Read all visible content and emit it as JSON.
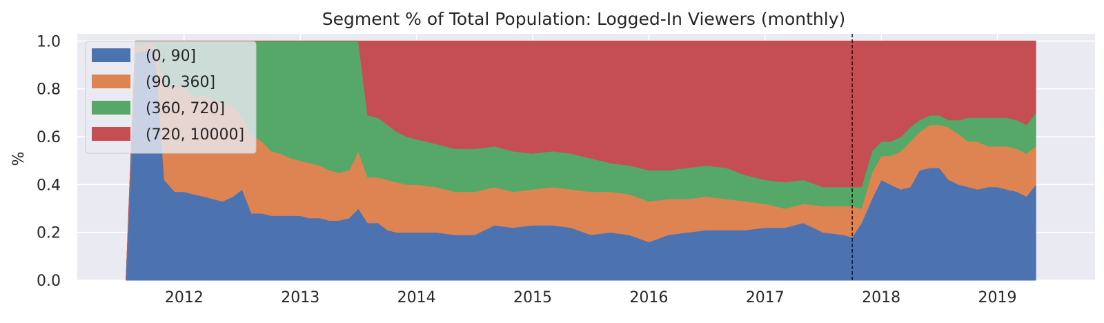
{
  "chart_data": {
    "type": "area",
    "stacked": true,
    "title": "Segment % of Total Population: Logged-In Viewers (monthly)",
    "xlabel": "",
    "ylabel": "%",
    "xlim": [
      2011.08,
      2019.84
    ],
    "ylim": [
      0.0,
      1.03
    ],
    "x_ticks": [
      2012,
      2013,
      2014,
      2015,
      2016,
      2017,
      2018,
      2019
    ],
    "y_ticks": [
      0.0,
      0.2,
      0.4,
      0.6,
      0.8,
      1.0
    ],
    "x_tick_labels": [
      "2012",
      "2013",
      "2014",
      "2015",
      "2016",
      "2017",
      "2018",
      "2019"
    ],
    "y_tick_labels": [
      "0.0",
      "0.2",
      "0.4",
      "0.6",
      "0.8",
      "1.0"
    ],
    "grid": true,
    "legend_position": "top-left",
    "vline": {
      "x": 2017.75,
      "style": "dashed",
      "color": "#000000"
    },
    "x": [
      2011.5,
      2011.58,
      2011.75,
      2011.83,
      2011.92,
      2012.0,
      2012.08,
      2012.17,
      2012.25,
      2012.33,
      2012.42,
      2012.5,
      2012.58,
      2012.67,
      2012.75,
      2012.83,
      2012.92,
      2013.0,
      2013.08,
      2013.17,
      2013.25,
      2013.33,
      2013.42,
      2013.5,
      2013.58,
      2013.67,
      2013.75,
      2013.83,
      2013.92,
      2014.0,
      2014.17,
      2014.33,
      2014.5,
      2014.67,
      2014.83,
      2015.0,
      2015.17,
      2015.33,
      2015.5,
      2015.67,
      2015.83,
      2016.0,
      2016.17,
      2016.33,
      2016.5,
      2016.67,
      2016.83,
      2017.0,
      2017.17,
      2017.33,
      2017.5,
      2017.67,
      2017.75,
      2017.83,
      2017.92,
      2018.0,
      2018.08,
      2018.17,
      2018.25,
      2018.33,
      2018.42,
      2018.5,
      2018.58,
      2018.67,
      2018.75,
      2018.83,
      2018.92,
      2019.0,
      2019.08,
      2019.17,
      2019.25,
      2019.33
    ],
    "series": [
      {
        "name": "(0, 90]",
        "color": "#4c72b0",
        "values": [
          0.0,
          0.95,
          0.97,
          0.42,
          0.37,
          0.37,
          0.36,
          0.35,
          0.34,
          0.33,
          0.35,
          0.38,
          0.28,
          0.28,
          0.27,
          0.27,
          0.27,
          0.27,
          0.26,
          0.26,
          0.25,
          0.25,
          0.26,
          0.3,
          0.24,
          0.24,
          0.21,
          0.2,
          0.2,
          0.2,
          0.2,
          0.19,
          0.19,
          0.23,
          0.22,
          0.23,
          0.23,
          0.22,
          0.19,
          0.2,
          0.19,
          0.16,
          0.19,
          0.2,
          0.21,
          0.21,
          0.21,
          0.22,
          0.22,
          0.24,
          0.2,
          0.19,
          0.18,
          0.24,
          0.34,
          0.42,
          0.4,
          0.38,
          0.39,
          0.46,
          0.47,
          0.47,
          0.42,
          0.4,
          0.39,
          0.38,
          0.39,
          0.39,
          0.38,
          0.37,
          0.35,
          0.4
        ]
      },
      {
        "name": "(90, 360]",
        "color": "#dd8452",
        "values": [
          0.0,
          0.03,
          0.02,
          0.39,
          0.44,
          0.44,
          0.41,
          0.42,
          0.42,
          0.41,
          0.38,
          0.3,
          0.33,
          0.3,
          0.27,
          0.26,
          0.24,
          0.23,
          0.23,
          0.22,
          0.21,
          0.2,
          0.2,
          0.24,
          0.19,
          0.19,
          0.21,
          0.21,
          0.2,
          0.2,
          0.19,
          0.18,
          0.18,
          0.16,
          0.15,
          0.15,
          0.16,
          0.16,
          0.18,
          0.17,
          0.17,
          0.17,
          0.15,
          0.14,
          0.14,
          0.13,
          0.12,
          0.1,
          0.08,
          0.08,
          0.11,
          0.12,
          0.13,
          0.06,
          0.11,
          0.1,
          0.12,
          0.16,
          0.19,
          0.16,
          0.18,
          0.18,
          0.22,
          0.21,
          0.19,
          0.2,
          0.17,
          0.17,
          0.18,
          0.18,
          0.18,
          0.16
        ]
      },
      {
        "name": "(360, 720]",
        "color": "#55a868",
        "values": [
          0.0,
          0.02,
          0.01,
          0.19,
          0.19,
          0.19,
          0.23,
          0.23,
          0.24,
          0.26,
          0.27,
          0.32,
          0.39,
          0.42,
          0.46,
          0.47,
          0.49,
          0.5,
          0.51,
          0.52,
          0.54,
          0.55,
          0.54,
          0.46,
          0.26,
          0.25,
          0.23,
          0.21,
          0.2,
          0.19,
          0.18,
          0.18,
          0.18,
          0.17,
          0.17,
          0.15,
          0.15,
          0.15,
          0.14,
          0.12,
          0.12,
          0.13,
          0.12,
          0.13,
          0.13,
          0.13,
          0.11,
          0.1,
          0.11,
          0.1,
          0.08,
          0.08,
          0.08,
          0.09,
          0.09,
          0.06,
          0.06,
          0.06,
          0.06,
          0.05,
          0.04,
          0.04,
          0.03,
          0.06,
          0.1,
          0.1,
          0.12,
          0.12,
          0.12,
          0.12,
          0.12,
          0.14
        ]
      },
      {
        "name": "(720, 10000]",
        "color": "#c44e52",
        "values": [
          0.0,
          0.0,
          0.0,
          0.0,
          0.0,
          0.0,
          0.0,
          0.0,
          0.0,
          0.0,
          0.0,
          0.0,
          0.0,
          0.0,
          0.0,
          0.0,
          0.0,
          0.0,
          0.0,
          0.0,
          0.0,
          0.0,
          0.0,
          0.0,
          0.31,
          0.32,
          0.35,
          0.38,
          0.4,
          0.41,
          0.43,
          0.45,
          0.45,
          0.44,
          0.46,
          0.47,
          0.46,
          0.47,
          0.49,
          0.51,
          0.52,
          0.54,
          0.54,
          0.53,
          0.52,
          0.53,
          0.56,
          0.58,
          0.59,
          0.58,
          0.61,
          0.61,
          0.61,
          0.61,
          0.46,
          0.42,
          0.42,
          0.4,
          0.36,
          0.33,
          0.31,
          0.31,
          0.33,
          0.33,
          0.32,
          0.32,
          0.32,
          0.32,
          0.32,
          0.33,
          0.35,
          0.3
        ]
      }
    ]
  }
}
